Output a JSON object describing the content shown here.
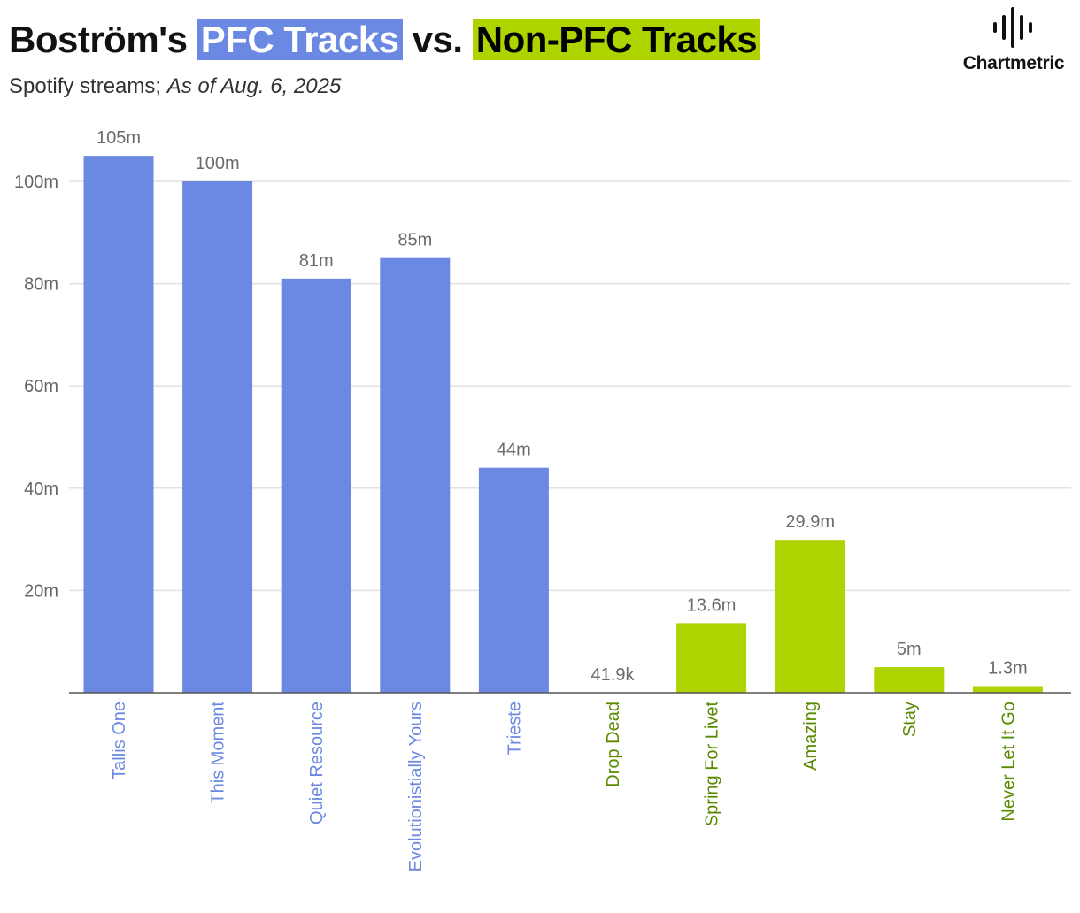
{
  "title": {
    "prefix": "Boström's ",
    "pfc": "PFC Tracks",
    "middle": " vs. ",
    "nonpfc": "Non-PFC Tracks"
  },
  "subtitle": {
    "main": "Spotify streams; ",
    "date": "As of Aug. 6, 2025"
  },
  "logo": {
    "text": "Chartmetric",
    "icon": "chartmetric-waveform-icon"
  },
  "colors": {
    "pfc": "#6b88e2",
    "non_pfc": "#aed400",
    "pfc_label": "#6b88e2",
    "non_pfc_label": "#5a8a00"
  },
  "chart_data": {
    "type": "bar",
    "title": "Boström's PFC Tracks vs. Non-PFC Tracks",
    "subtitle": "Spotify streams; As of Aug. 6, 2025",
    "xlabel": "",
    "ylabel": "",
    "ylim": [
      0,
      110000000
    ],
    "yticks": [
      20000000,
      40000000,
      60000000,
      80000000,
      100000000
    ],
    "ytick_labels": [
      "20m",
      "40m",
      "60m",
      "80m",
      "100m"
    ],
    "grid": true,
    "categories": [
      "Tallis One",
      "This Moment",
      "Quiet Resource",
      "Evolutionistially Yours",
      "Trieste",
      "Drop Dead",
      "Spring For Livet",
      "Amazing",
      "Stay",
      "Never Let It Go"
    ],
    "values": [
      105000000,
      100000000,
      81000000,
      85000000,
      44000000,
      41900,
      13600000,
      29900000,
      5000000,
      1300000
    ],
    "value_labels": [
      "105m",
      "100m",
      "81m",
      "85m",
      "44m",
      "41.9k",
      "13.6m",
      "29.9m",
      "5m",
      "1.3m"
    ],
    "groups": [
      "pfc",
      "pfc",
      "pfc",
      "pfc",
      "pfc",
      "non_pfc",
      "non_pfc",
      "non_pfc",
      "non_pfc",
      "non_pfc"
    ]
  }
}
